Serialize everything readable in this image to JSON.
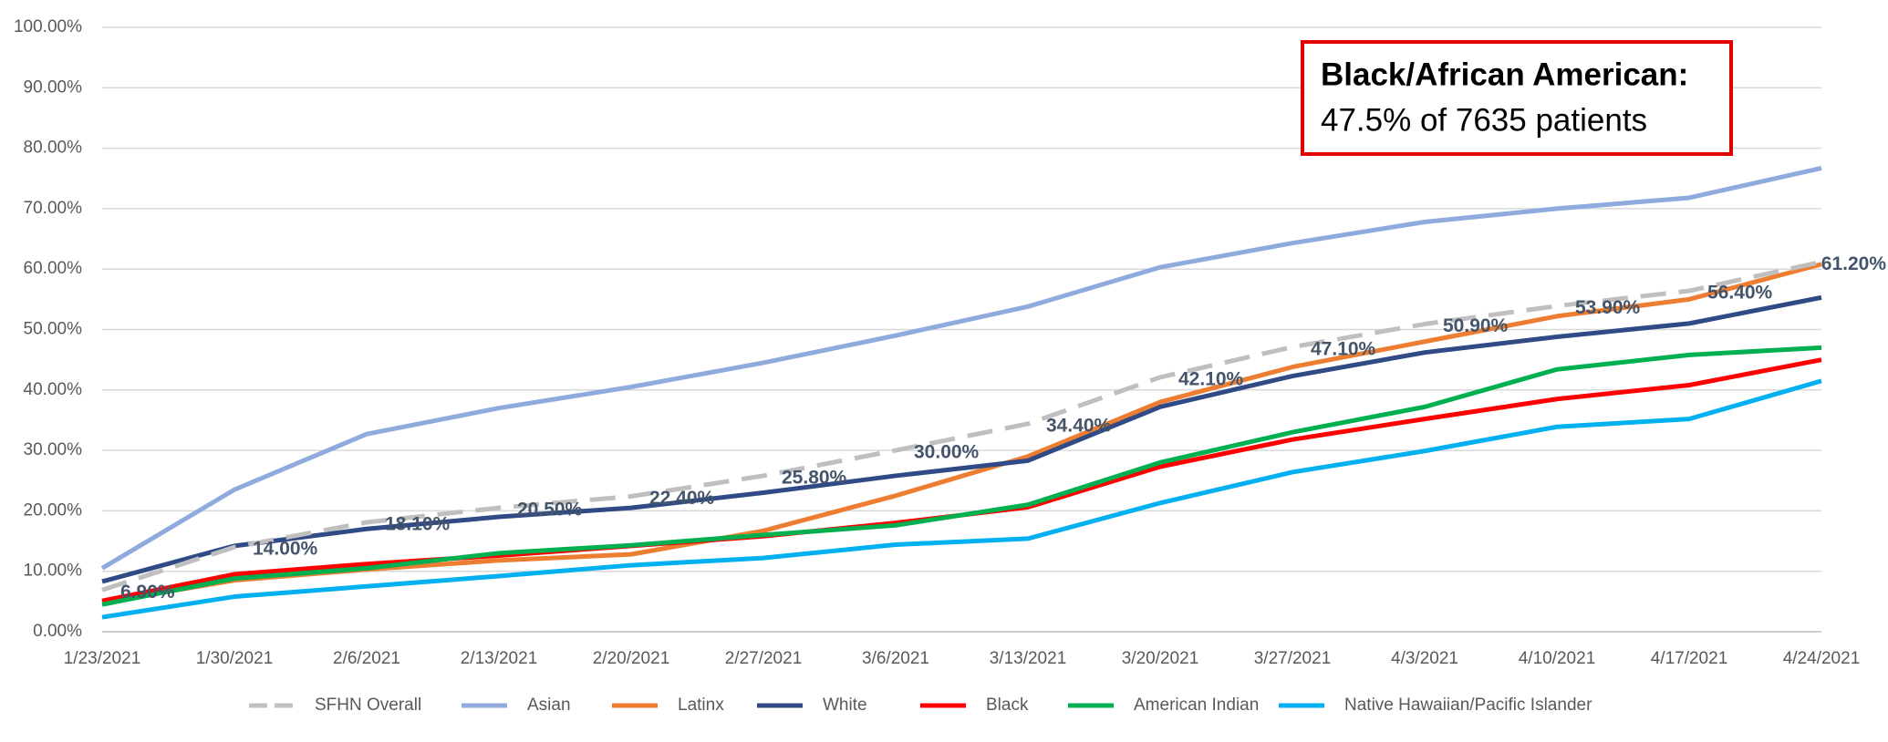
{
  "chart_data": {
    "type": "line",
    "categories": [
      "1/23/2021",
      "1/30/2021",
      "2/6/2021",
      "2/13/2021",
      "2/20/2021",
      "2/27/2021",
      "3/6/2021",
      "3/13/2021",
      "3/20/2021",
      "3/27/2021",
      "4/3/2021",
      "4/10/2021",
      "4/17/2021",
      "4/24/2021"
    ],
    "ylim": [
      0,
      100
    ],
    "yticks": [
      {
        "value": 0,
        "label": "0.00%"
      },
      {
        "value": 10,
        "label": "10.00%"
      },
      {
        "value": 20,
        "label": "20.00%"
      },
      {
        "value": 30,
        "label": "30.00%"
      },
      {
        "value": 40,
        "label": "40.00%"
      },
      {
        "value": 50,
        "label": "50.00%"
      },
      {
        "value": 60,
        "label": "60.00%"
      },
      {
        "value": 70,
        "label": "70.00%"
      },
      {
        "value": 80,
        "label": "80.00%"
      },
      {
        "value": 90,
        "label": "90.00%"
      },
      {
        "value": 100,
        "label": "100.00%"
      }
    ],
    "grid": true,
    "legend": "bottom",
    "annotation": {
      "title": "Black/African American:",
      "text": "47.5% of 7635 patients"
    },
    "series": [
      {
        "name": "SFHN Overall",
        "color": "#bfbfbf",
        "dashed": true,
        "values": [
          6.9,
          14.0,
          18.1,
          20.5,
          22.4,
          25.8,
          30.0,
          34.4,
          42.1,
          47.1,
          50.9,
          53.9,
          56.4,
          61.2
        ],
        "value_labels": [
          "6.90%",
          "14.00%",
          "18.10%",
          "20.50%",
          "22.40%",
          "25.80%",
          "30.00%",
          "34.40%",
          "42.10%",
          "47.10%",
          "50.90%",
          "53.90%",
          "56.40%",
          "61.20%"
        ]
      },
      {
        "name": "Asian",
        "color": "#8faadc",
        "values": [
          10.5,
          23.5,
          32.7,
          37.0,
          40.5,
          44.5,
          49.0,
          53.8,
          60.3,
          64.3,
          67.8,
          70.0,
          71.8,
          76.7
        ]
      },
      {
        "name": "Latinx",
        "color": "#ed7d31",
        "values": [
          4.8,
          8.5,
          10.3,
          11.8,
          12.8,
          16.7,
          22.5,
          29.0,
          38.0,
          43.8,
          48.0,
          52.2,
          55.0,
          60.8
        ]
      },
      {
        "name": "White",
        "color": "#2f4a85",
        "values": [
          8.3,
          14.2,
          17.0,
          19.0,
          20.5,
          23.0,
          25.8,
          28.3,
          37.2,
          42.3,
          46.2,
          48.8,
          51.0,
          55.3
        ]
      },
      {
        "name": "Black",
        "color": "#ff0000",
        "values": [
          5.1,
          9.5,
          11.2,
          12.6,
          14.2,
          15.8,
          18.0,
          20.6,
          27.3,
          31.8,
          35.2,
          38.5,
          40.8,
          45.0
        ]
      },
      {
        "name": "American Indian",
        "color": "#00b050",
        "values": [
          4.5,
          8.8,
          10.5,
          13.0,
          14.3,
          16.0,
          17.6,
          21.0,
          28.0,
          33.0,
          37.2,
          43.4,
          45.8,
          47.0
        ]
      },
      {
        "name": "Native Hawaiian/Pacific Islander",
        "color": "#00b0f0",
        "values": [
          2.4,
          5.8,
          7.5,
          9.2,
          11.0,
          12.2,
          14.4,
          15.4,
          21.3,
          26.4,
          29.9,
          33.9,
          35.2,
          41.5
        ]
      }
    ]
  }
}
